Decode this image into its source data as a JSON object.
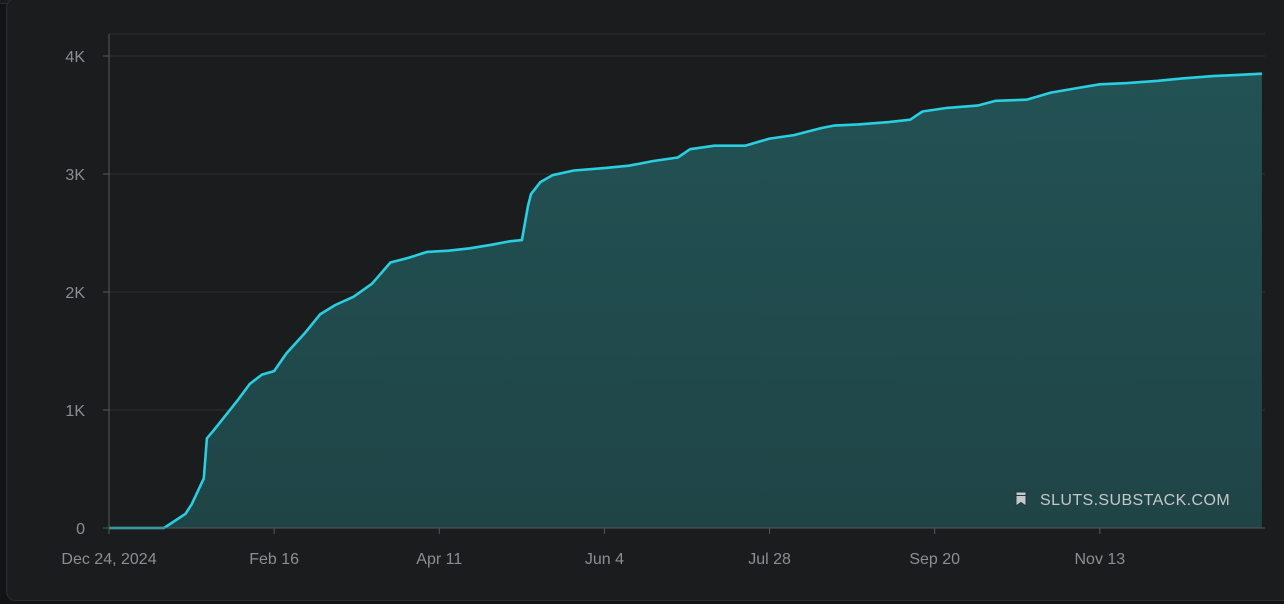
{
  "chart_data": {
    "type": "area",
    "title": "",
    "xlabel": "",
    "ylabel": "",
    "grid": true,
    "ylim": [
      0,
      4100
    ],
    "x_range": [
      "2024-12-24",
      "2026-01-06"
    ],
    "y_ticks": [
      0,
      1000,
      2000,
      3000,
      4000
    ],
    "y_tick_labels": [
      "0",
      "1K",
      "2K",
      "3K",
      "4K"
    ],
    "x_ticks": [
      "2024-12-24",
      "2025-02-16",
      "2025-04-11",
      "2025-06-04",
      "2025-07-28",
      "2025-09-20",
      "2025-11-13"
    ],
    "x_tick_labels": [
      "Dec 24, 2024",
      "Feb 16",
      "Apr 11",
      "Jun 4",
      "Jul 28",
      "Sep 20",
      "Nov 13"
    ],
    "line_color": "#29cfe0",
    "fill_color": "#235356",
    "series": [
      {
        "x": [
          "2024-12-24",
          "2025-01-11",
          "2025-01-18",
          "2025-01-20",
          "2025-01-24",
          "2025-01-25",
          "2025-01-27",
          "2025-01-31",
          "2025-02-04",
          "2025-02-08",
          "2025-02-12",
          "2025-02-16",
          "2025-02-20",
          "2025-02-26",
          "2025-03-03",
          "2025-03-08",
          "2025-03-14",
          "2025-03-20",
          "2025-03-26",
          "2025-04-01",
          "2025-04-07",
          "2025-04-14",
          "2025-04-21",
          "2025-04-28",
          "2025-05-04",
          "2025-05-08",
          "2025-05-10",
          "2025-05-11",
          "2025-05-14",
          "2025-05-18",
          "2025-05-25",
          "2025-06-04",
          "2025-06-12",
          "2025-06-20",
          "2025-06-28",
          "2025-07-02",
          "2025-07-10",
          "2025-07-20",
          "2025-07-28",
          "2025-08-05",
          "2025-08-14",
          "2025-08-18",
          "2025-08-26",
          "2025-09-05",
          "2025-09-12",
          "2025-09-16",
          "2025-09-24",
          "2025-10-04",
          "2025-10-10",
          "2025-10-20",
          "2025-10-28",
          "2025-11-06",
          "2025-11-13",
          "2025-11-22",
          "2025-12-02",
          "2025-12-10",
          "2025-12-20",
          "2025-12-28",
          "2026-01-05"
        ],
        "y": [
          0,
          0,
          120,
          200,
          420,
          760,
          820,
          950,
          1080,
          1220,
          1300,
          1330,
          1480,
          1650,
          1810,
          1890,
          1960,
          2070,
          2250,
          2290,
          2340,
          2350,
          2370,
          2400,
          2430,
          2440,
          2730,
          2830,
          2930,
          2990,
          3030,
          3050,
          3070,
          3110,
          3140,
          3210,
          3240,
          3240,
          3300,
          3330,
          3390,
          3410,
          3420,
          3440,
          3460,
          3530,
          3560,
          3580,
          3620,
          3630,
          3690,
          3730,
          3760,
          3770,
          3790,
          3810,
          3830,
          3840,
          3850
        ]
      }
    ]
  },
  "watermark": {
    "icon": "bookmark-icon",
    "text": "SLUTS.SUBSTACK.COM"
  }
}
